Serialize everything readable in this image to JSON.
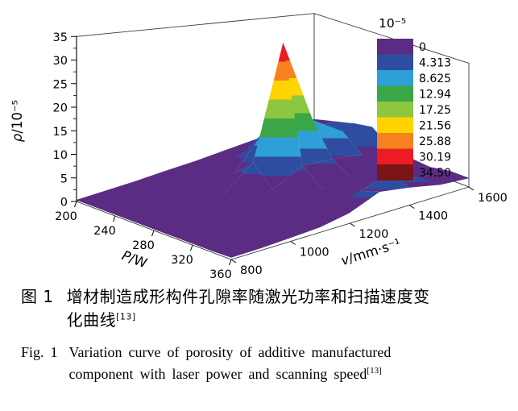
{
  "figure": {
    "caption_zh": {
      "prefix": "图 1",
      "line1": "增材制造成形构件孔隙率随激光功率和扫描速度变",
      "line2": "化曲线",
      "ref": "[13]"
    },
    "caption_en": {
      "prefix": "Fig. 1",
      "line1": "Variation curve of porosity of additive manufactured",
      "line2": "component with laser power and scanning speed",
      "ref": "[13]"
    }
  },
  "chart_data": {
    "type": "surface",
    "title": "",
    "xlabel": "P/W",
    "ylabel": "v/mm·s⁻¹",
    "zlabel": "ρ/10⁻⁵",
    "x_ticks": [
      200,
      240,
      280,
      320,
      360
    ],
    "y_ticks": [
      800,
      1000,
      1200,
      1400,
      1600
    ],
    "z_ticks": [
      0,
      5,
      10,
      15,
      20,
      25,
      30,
      35
    ],
    "xlim": [
      200,
      360
    ],
    "ylim": [
      800,
      1600
    ],
    "zlim": [
      0,
      35
    ],
    "x_p_w": [
      200,
      220,
      240,
      260,
      280,
      300,
      320,
      340,
      360
    ],
    "y_v": [
      800,
      900,
      1000,
      1100,
      1200,
      1300,
      1400,
      1500,
      1600
    ],
    "z_rho_1e5_rows_v_cols_p": [
      [
        0.3,
        0.3,
        0.3,
        0.3,
        0.3,
        0.3,
        0.3,
        0.3,
        0.4
      ],
      [
        0.4,
        0.3,
        0.3,
        0.3,
        0.3,
        0.3,
        0.3,
        0.3,
        0.5
      ],
      [
        0.5,
        0.4,
        0.3,
        0.3,
        0.3,
        0.3,
        0.4,
        0.5,
        0.8
      ],
      [
        0.8,
        0.5,
        0.5,
        0.4,
        0.4,
        0.4,
        0.5,
        0.8,
        1.2
      ],
      [
        1.0,
        0.8,
        1.5,
        6.0,
        1.0,
        0.5,
        0.8,
        1.5,
        2.5
      ],
      [
        1.5,
        3.0,
        10.0,
        34.5,
        5.0,
        1.0,
        1.2,
        4.0,
        5.5
      ],
      [
        2.0,
        4.0,
        9.0,
        13.0,
        4.5,
        1.5,
        2.0,
        6.5,
        4.5
      ],
      [
        2.5,
        4.0,
        6.5,
        8.0,
        3.5,
        2.0,
        1.5,
        3.0,
        3.0
      ],
      [
        3.0,
        4.5,
        6.0,
        7.0,
        3.0,
        2.0,
        1.5,
        2.5,
        2.5
      ]
    ],
    "peak": {
      "P": 260,
      "v": 1300,
      "rho_1e5": 34.5
    },
    "legend_position": "right",
    "grid": "off",
    "colorbar": {
      "title": "10⁻⁵",
      "labels": [
        "0",
        "4.313",
        "8.625",
        "12.94",
        "17.25",
        "21.56",
        "25.88",
        "30.19",
        "34.50"
      ],
      "colors": [
        "#5b2c83",
        "#2f4da0",
        "#2f9fd8",
        "#3aa648",
        "#8dc63f",
        "#ffd400",
        "#f6821f",
        "#ec1c24",
        "#7a1416"
      ]
    }
  }
}
